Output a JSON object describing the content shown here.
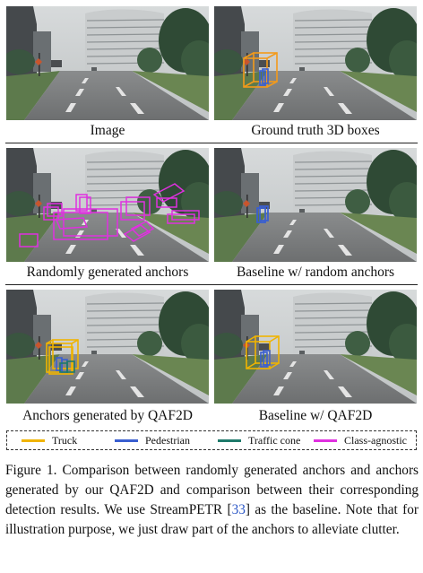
{
  "panels": [
    {
      "caption": "Image"
    },
    {
      "caption": "Ground truth 3D boxes"
    },
    {
      "caption": "Randomly generated anchors"
    },
    {
      "caption": "Baseline w/ random anchors"
    },
    {
      "caption": "Anchors generated by QAF2D"
    },
    {
      "caption": "Baseline w/ QAF2D"
    }
  ],
  "legend": [
    {
      "label": "Truck",
      "color": "#f0b400"
    },
    {
      "label": "Pedestrian",
      "color": "#3a5fd0"
    },
    {
      "label": "Traffic cone",
      "color": "#1f7a6b"
    },
    {
      "label": "Class-agnostic",
      "color": "#e030e0"
    }
  ],
  "figure_caption": {
    "before_ref": "Figure 1. Comparison between randomly generated anchors and anchors generated by our QAF2D and comparison between their corresponding detection results. We use StreamPETR [",
    "ref": "33",
    "after_ref": "] as the baseline. Note that for illustration purpose, we just draw part of the anchors to alleviate clutter."
  }
}
